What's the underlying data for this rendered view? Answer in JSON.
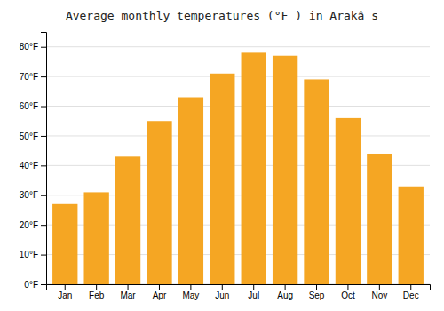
{
  "chart_data": {
    "type": "bar",
    "title": "Average monthly temperatures (°F ) in Arakâ s",
    "categories": [
      "Jan",
      "Feb",
      "Mar",
      "Apr",
      "May",
      "Jun",
      "Jul",
      "Aug",
      "Sep",
      "Oct",
      "Nov",
      "Dec"
    ],
    "values": [
      27,
      31,
      43,
      55,
      63,
      71,
      78,
      77,
      69,
      56,
      44,
      33
    ],
    "color": "#F5A623",
    "ylim": [
      0,
      85
    ],
    "yticks": [
      {
        "value": 0,
        "label": "0°F"
      },
      {
        "value": 10,
        "label": "10°F"
      },
      {
        "value": 20,
        "label": "20°F"
      },
      {
        "value": 30,
        "label": "30°F"
      },
      {
        "value": 40,
        "label": "40°F"
      },
      {
        "value": 50,
        "label": "50°F"
      },
      {
        "value": 60,
        "label": "60°F"
      },
      {
        "value": 70,
        "label": "70°F"
      },
      {
        "value": 80,
        "label": "80°F"
      }
    ],
    "grid": true
  }
}
